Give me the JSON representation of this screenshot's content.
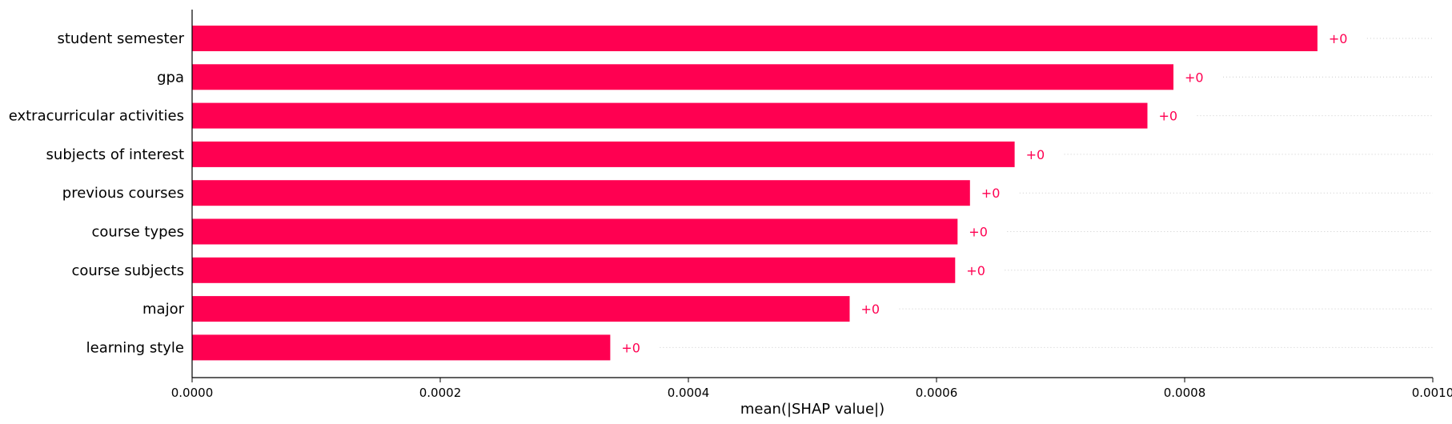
{
  "chart_data": {
    "type": "bar",
    "orientation": "horizontal",
    "categories": [
      "student semester",
      "gpa",
      "extracurricular activities",
      "subjects of interest",
      "previous courses",
      "course types",
      "course subjects",
      "major",
      "learning style"
    ],
    "values": [
      0.000907,
      0.000791,
      0.00077,
      0.000663,
      0.000627,
      0.000617,
      0.000615,
      0.00053,
      0.000337
    ],
    "data_labels": [
      "+0",
      "+0",
      "+0",
      "+0",
      "+0",
      "+0",
      "+0",
      "+0",
      "+0"
    ],
    "xlabel": "mean(|SHAP value|)",
    "xlim": [
      0,
      0.001
    ],
    "xticks": [
      0,
      0.0002,
      0.0004,
      0.0006,
      0.0008,
      0.001
    ],
    "xtick_labels": [
      "0.0000",
      "0.0002",
      "0.0004",
      "0.0006",
      "0.0008",
      "0.0010"
    ],
    "bar_color": "#ff0051",
    "gridlines": "dotted horizontal guides after each bar"
  }
}
